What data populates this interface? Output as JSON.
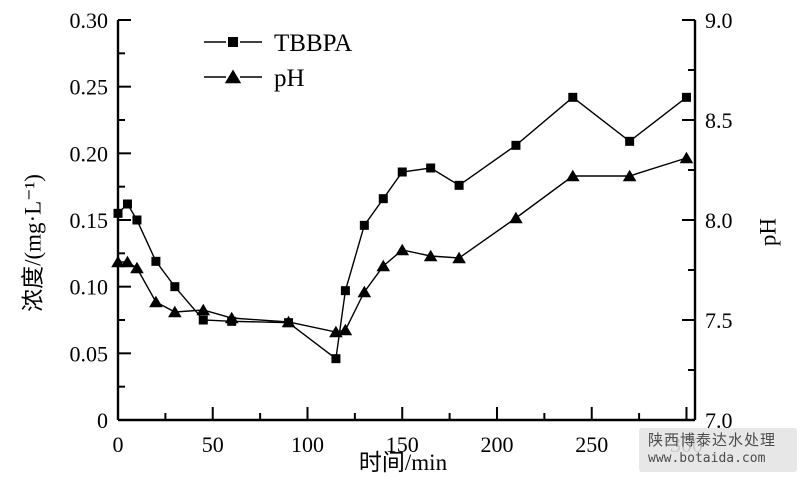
{
  "watermark": {
    "line1": "陕西博泰达水处理",
    "line2": "www.botaida.com"
  },
  "chart_data": {
    "type": "line",
    "title": "",
    "xlabel": "时间/min",
    "ylabel_left": "浓度/(mg·L⁻¹)",
    "ylabel_right": "pH",
    "xlim": [
      0,
      304.5
    ],
    "ylim_left": [
      0,
      0.3
    ],
    "ylim_right": [
      7.0,
      9.0
    ],
    "grid": false,
    "legend_position": "inside-top-left",
    "line_color": "#000000",
    "x": [
      0,
      5,
      10,
      20,
      30,
      45,
      60,
      90,
      115,
      120,
      130,
      140,
      150,
      165,
      180,
      210,
      240,
      270,
      300
    ],
    "series": [
      {
        "name": "TBBPA",
        "marker": "square",
        "axis": "left",
        "values": [
          0.155,
          0.162,
          0.15,
          0.119,
          0.1,
          0.075,
          0.074,
          0.073,
          0.046,
          0.097,
          0.146,
          0.166,
          0.186,
          0.189,
          0.176,
          0.206,
          0.242,
          0.209,
          0.242
        ]
      },
      {
        "name": "pH",
        "marker": "triangle",
        "axis": "right",
        "values": [
          7.79,
          7.79,
          7.76,
          7.59,
          7.54,
          7.55,
          7.51,
          7.49,
          7.44,
          7.45,
          7.64,
          7.77,
          7.85,
          7.82,
          7.81,
          8.01,
          8.22,
          8.22,
          8.31
        ]
      }
    ],
    "x_axis": {
      "minor_step": 25,
      "ticks": [
        {
          "v": 0,
          "label": "0"
        },
        {
          "v": 50,
          "label": "50"
        },
        {
          "v": 100,
          "label": "100"
        },
        {
          "v": 150,
          "label": "150"
        },
        {
          "v": 200,
          "label": "200"
        },
        {
          "v": 250,
          "label": "250"
        },
        {
          "v": 300,
          "label": "300"
        }
      ]
    },
    "left_axis": {
      "minor_step": 0.025,
      "ticks": [
        {
          "v": 0.3,
          "label": "0.30"
        },
        {
          "v": 0.25,
          "label": "0.25"
        },
        {
          "v": 0.2,
          "label": "0.20"
        },
        {
          "v": 0.15,
          "label": "0.15"
        },
        {
          "v": 0.1,
          "label": "0.10"
        },
        {
          "v": 0.05,
          "label": "0.05"
        },
        {
          "v": 0,
          "label": "0"
        }
      ]
    },
    "right_axis": {
      "minor_step": 0.25,
      "ticks": [
        {
          "v": 9.0,
          "label": "9.0"
        },
        {
          "v": 8.5,
          "label": "8.5"
        },
        {
          "v": 8.0,
          "label": "8.0"
        },
        {
          "v": 7.5,
          "label": "7.5"
        },
        {
          "v": 7.0,
          "label": "7.0"
        }
      ]
    }
  }
}
